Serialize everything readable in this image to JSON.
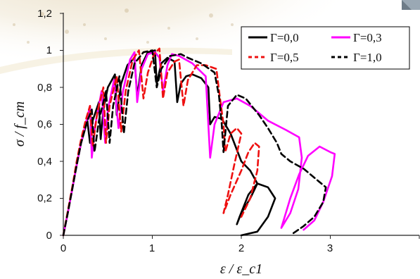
{
  "chart_data": {
    "type": "line",
    "title": "",
    "xlabel": "ε / ε_c1",
    "ylabel": "σ / f_cm",
    "xlim": [
      0,
      4
    ],
    "ylim": [
      0,
      1.2
    ],
    "x_ticks": [
      "0",
      "1",
      "2",
      "3"
    ],
    "y_ticks": [
      "0",
      "0,2",
      "0,4",
      "0,6",
      "0,8",
      "1",
      "1,2"
    ],
    "grid": false,
    "legend_position": "top-right",
    "background": "faded photograph (top-left) and small image (top-right corner)",
    "series": [
      {
        "name": "Γ=0,0",
        "color": "#000000",
        "dash": "solid",
        "points": [
          [
            0,
            0
          ],
          [
            0.05,
            0.12
          ],
          [
            0.1,
            0.25
          ],
          [
            0.15,
            0.38
          ],
          [
            0.2,
            0.5
          ],
          [
            0.27,
            0.62
          ],
          [
            0.3,
            0.5
          ],
          [
            0.33,
            0.62
          ],
          [
            0.4,
            0.72
          ],
          [
            0.42,
            0.52
          ],
          [
            0.45,
            0.68
          ],
          [
            0.5,
            0.8
          ],
          [
            0.58,
            0.87
          ],
          [
            0.6,
            0.65
          ],
          [
            0.65,
            0.82
          ],
          [
            0.72,
            0.92
          ],
          [
            0.8,
            0.96
          ],
          [
            0.83,
            0.75
          ],
          [
            0.88,
            0.92
          ],
          [
            0.95,
            0.99
          ],
          [
            1.03,
            1.0
          ],
          [
            1.05,
            0.82
          ],
          [
            1.1,
            0.93
          ],
          [
            1.17,
            0.96
          ],
          [
            1.25,
            0.94
          ],
          [
            1.28,
            0.72
          ],
          [
            1.32,
            0.82
          ],
          [
            1.38,
            0.86
          ],
          [
            1.45,
            0.87
          ],
          [
            1.55,
            0.85
          ],
          [
            1.63,
            0.8
          ],
          [
            1.65,
            0.6
          ],
          [
            1.7,
            0.64
          ],
          [
            1.78,
            0.63
          ],
          [
            1.88,
            0.55
          ],
          [
            2.0,
            0.4
          ],
          [
            2.1,
            0.35
          ],
          [
            2.18,
            0.28
          ],
          [
            2.1,
            0.2
          ],
          [
            2.0,
            0.12
          ],
          [
            1.95,
            0.06
          ],
          [
            1.98,
            0.1
          ],
          [
            2.08,
            0.22
          ],
          [
            2.18,
            0.28
          ],
          [
            2.3,
            0.26
          ],
          [
            2.38,
            0.2
          ],
          [
            2.3,
            0.1
          ],
          [
            2.18,
            0.02
          ],
          [
            2.0,
            0
          ]
        ]
      },
      {
        "name": "Γ=0,3",
        "color": "#ff00ff",
        "dash": "solid",
        "points": [
          [
            0,
            0
          ],
          [
            0.05,
            0.12
          ],
          [
            0.1,
            0.25
          ],
          [
            0.15,
            0.38
          ],
          [
            0.2,
            0.5
          ],
          [
            0.25,
            0.6
          ],
          [
            0.3,
            0.7
          ],
          [
            0.32,
            0.42
          ],
          [
            0.36,
            0.6
          ],
          [
            0.43,
            0.78
          ],
          [
            0.47,
            0.5
          ],
          [
            0.5,
            0.68
          ],
          [
            0.57,
            0.84
          ],
          [
            0.62,
            0.58
          ],
          [
            0.67,
            0.78
          ],
          [
            0.75,
            0.95
          ],
          [
            0.8,
            0.99
          ],
          [
            0.83,
            0.72
          ],
          [
            0.88,
            0.9
          ],
          [
            0.95,
            0.98
          ],
          [
            1.03,
            0.99
          ],
          [
            1.08,
            0.96
          ],
          [
            1.12,
            0.78
          ],
          [
            1.17,
            0.92
          ],
          [
            1.22,
            0.98
          ],
          [
            1.3,
            0.97
          ],
          [
            1.45,
            0.93
          ],
          [
            1.6,
            0.86
          ],
          [
            1.65,
            0.42
          ],
          [
            1.7,
            0.6
          ],
          [
            1.8,
            0.72
          ],
          [
            1.95,
            0.74
          ],
          [
            2.1,
            0.7
          ],
          [
            2.3,
            0.62
          ],
          [
            2.5,
            0.57
          ],
          [
            2.65,
            0.53
          ],
          [
            2.68,
            0.42
          ],
          [
            2.64,
            0.25
          ],
          [
            2.55,
            0.12
          ],
          [
            2.45,
            0.04
          ],
          [
            2.55,
            0.2
          ],
          [
            2.65,
            0.33
          ],
          [
            2.75,
            0.43
          ],
          [
            2.88,
            0.48
          ],
          [
            3.0,
            0.45
          ],
          [
            3.05,
            0.44
          ],
          [
            3.02,
            0.32
          ],
          [
            2.92,
            0.18
          ],
          [
            2.82,
            0.08
          ],
          [
            2.7,
            0.03
          ]
        ]
      },
      {
        "name": "Γ=0,5",
        "color": "#ee1111",
        "dash": "dashed",
        "points": [
          [
            0,
            0
          ],
          [
            0.05,
            0.13
          ],
          [
            0.1,
            0.26
          ],
          [
            0.15,
            0.4
          ],
          [
            0.2,
            0.52
          ],
          [
            0.25,
            0.62
          ],
          [
            0.3,
            0.7
          ],
          [
            0.33,
            0.48
          ],
          [
            0.38,
            0.66
          ],
          [
            0.45,
            0.8
          ],
          [
            0.48,
            0.5
          ],
          [
            0.52,
            0.7
          ],
          [
            0.6,
            0.86
          ],
          [
            0.65,
            0.56
          ],
          [
            0.7,
            0.78
          ],
          [
            0.78,
            0.95
          ],
          [
            0.85,
            1.0
          ],
          [
            0.9,
            0.74
          ],
          [
            0.95,
            0.88
          ],
          [
            1.02,
            0.98
          ],
          [
            1.08,
            1.01
          ],
          [
            1.12,
            0.74
          ],
          [
            1.17,
            0.88
          ],
          [
            1.25,
            0.94
          ],
          [
            1.3,
            0.95
          ],
          [
            1.35,
            0.7
          ],
          [
            1.4,
            0.84
          ],
          [
            1.5,
            0.92
          ],
          [
            1.6,
            0.92
          ],
          [
            1.72,
            0.9
          ],
          [
            1.75,
            0.78
          ],
          [
            1.8,
            0.6
          ],
          [
            1.82,
            0.45
          ],
          [
            1.88,
            0.55
          ],
          [
            1.95,
            0.58
          ],
          [
            2.0,
            0.55
          ],
          [
            1.92,
            0.38
          ],
          [
            1.85,
            0.22
          ],
          [
            1.8,
            0.12
          ],
          [
            1.88,
            0.22
          ],
          [
            2.0,
            0.35
          ],
          [
            2.08,
            0.45
          ],
          [
            2.15,
            0.5
          ],
          [
            2.2,
            0.48
          ],
          [
            2.18,
            0.35
          ],
          [
            2.1,
            0.2
          ],
          [
            2.0,
            0.1
          ]
        ]
      },
      {
        "name": "Γ=1,0",
        "color": "#000000",
        "dash": "dashed",
        "points": [
          [
            0,
            0
          ],
          [
            0.05,
            0.12
          ],
          [
            0.1,
            0.25
          ],
          [
            0.15,
            0.38
          ],
          [
            0.2,
            0.5
          ],
          [
            0.27,
            0.62
          ],
          [
            0.32,
            0.68
          ],
          [
            0.35,
            0.45
          ],
          [
            0.4,
            0.62
          ],
          [
            0.48,
            0.78
          ],
          [
            0.52,
            0.5
          ],
          [
            0.56,
            0.7
          ],
          [
            0.63,
            0.86
          ],
          [
            0.68,
            0.55
          ],
          [
            0.73,
            0.78
          ],
          [
            0.8,
            0.93
          ],
          [
            0.9,
            0.99
          ],
          [
            1.0,
            1.0
          ],
          [
            1.05,
            0.8
          ],
          [
            1.1,
            0.9
          ],
          [
            1.2,
            0.97
          ],
          [
            1.32,
            0.98
          ],
          [
            1.4,
            0.96
          ],
          [
            1.55,
            0.93
          ],
          [
            1.7,
            0.88
          ],
          [
            1.75,
            0.75
          ],
          [
            1.78,
            0.6
          ],
          [
            1.8,
            0.45
          ],
          [
            1.85,
            0.7
          ],
          [
            1.95,
            0.76
          ],
          [
            2.05,
            0.74
          ],
          [
            2.2,
            0.65
          ],
          [
            2.3,
            0.58
          ],
          [
            2.4,
            0.5
          ],
          [
            2.45,
            0.44
          ],
          [
            2.55,
            0.4
          ],
          [
            2.7,
            0.36
          ],
          [
            2.85,
            0.3
          ],
          [
            2.95,
            0.26
          ],
          [
            2.92,
            0.18
          ],
          [
            2.82,
            0.1
          ],
          [
            2.7,
            0.05
          ],
          [
            2.58,
            0.01
          ]
        ]
      }
    ]
  }
}
